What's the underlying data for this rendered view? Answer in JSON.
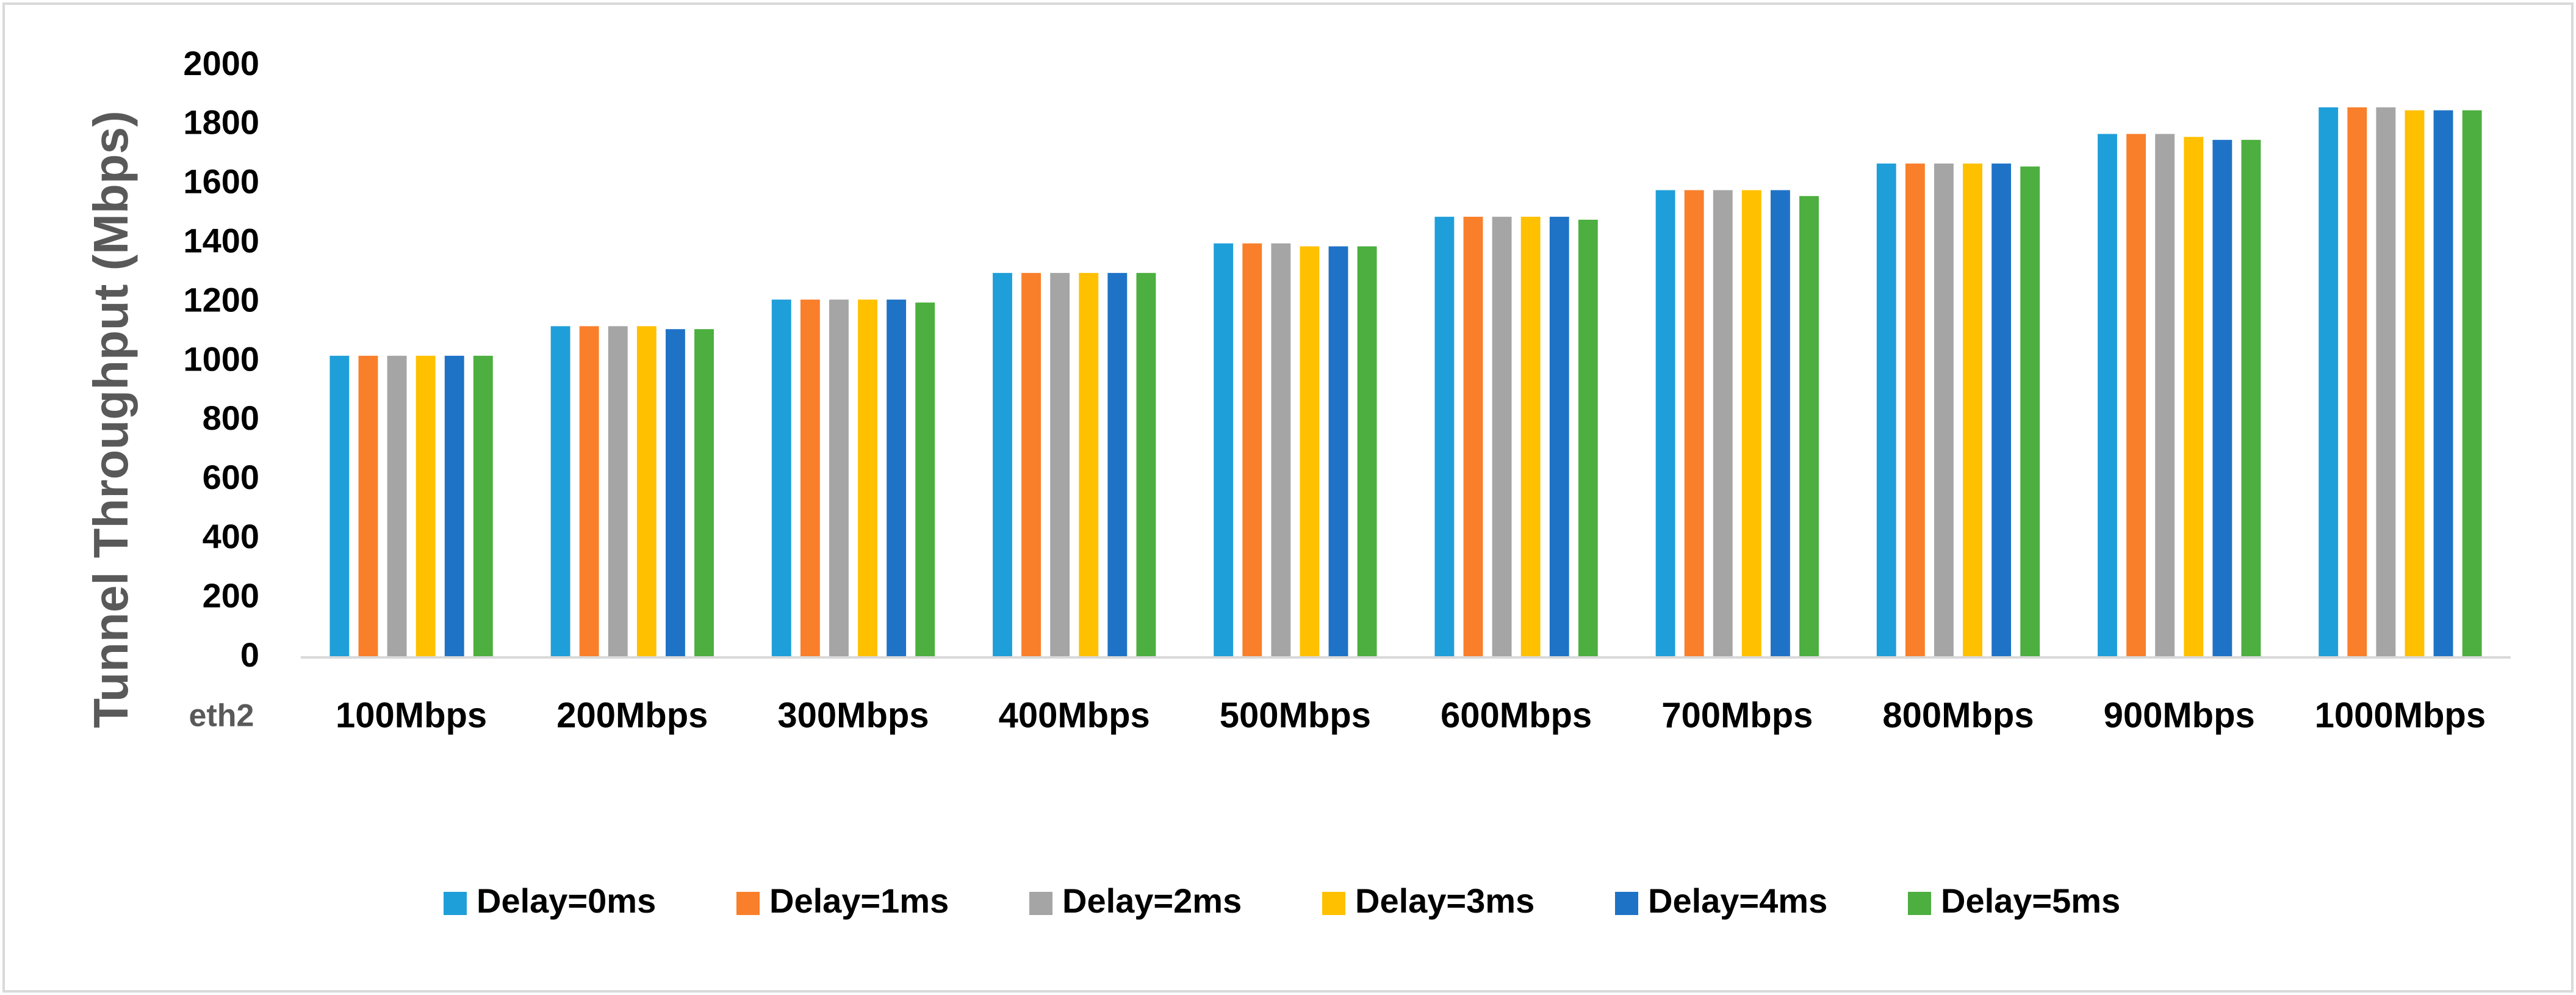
{
  "chart_data": {
    "type": "bar",
    "ylabel": "Tunnel Throughput (Mbps)",
    "xlabel": "eth2",
    "categories": [
      "100Mbps",
      "200Mbps",
      "300Mbps",
      "400Mbps",
      "500Mbps",
      "600Mbps",
      "700Mbps",
      "800Mbps",
      "900Mbps",
      "1000Mbps"
    ],
    "series": [
      {
        "name": "Delay=0ms",
        "color": "#1f9fd9",
        "values": [
          1020,
          1120,
          1210,
          1300,
          1400,
          1490,
          1580,
          1670,
          1770,
          1860
        ]
      },
      {
        "name": "Delay=1ms",
        "color": "#f97f2b",
        "values": [
          1020,
          1120,
          1210,
          1300,
          1400,
          1490,
          1580,
          1670,
          1770,
          1860
        ]
      },
      {
        "name": "Delay=2ms",
        "color": "#a5a5a5",
        "values": [
          1020,
          1120,
          1210,
          1300,
          1400,
          1490,
          1580,
          1670,
          1770,
          1860
        ]
      },
      {
        "name": "Delay=3ms",
        "color": "#ffc000",
        "values": [
          1020,
          1120,
          1210,
          1300,
          1390,
          1490,
          1580,
          1670,
          1760,
          1850
        ]
      },
      {
        "name": "Delay=4ms",
        "color": "#1f73c7",
        "values": [
          1020,
          1110,
          1210,
          1300,
          1390,
          1490,
          1580,
          1670,
          1750,
          1850
        ]
      },
      {
        "name": "Delay=5ms",
        "color": "#4caf3f",
        "values": [
          1020,
          1110,
          1200,
          1300,
          1390,
          1480,
          1560,
          1660,
          1750,
          1850
        ]
      }
    ],
    "ylim": [
      0,
      2000
    ],
    "yticks": [
      0,
      200,
      400,
      600,
      800,
      1000,
      1200,
      1400,
      1600,
      1800,
      2000
    ],
    "grid": false,
    "legend": "bottom"
  }
}
